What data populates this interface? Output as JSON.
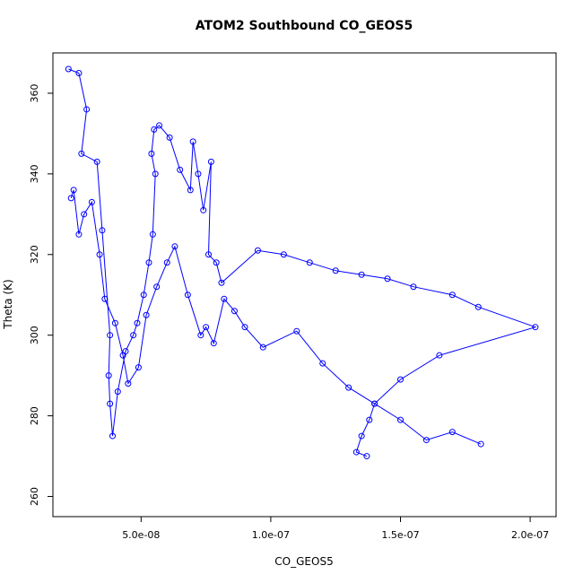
{
  "chart_data": {
    "type": "scatter",
    "title": "ATOM2 Southbound CO_GEOS5",
    "xlabel": "CO_GEOS5",
    "ylabel": "Theta (K)",
    "xlim": [
      1.6e-08,
      2.1e-07
    ],
    "ylim": [
      255,
      370
    ],
    "x_ticks": [
      5e-08,
      1e-07,
      1.5e-07,
      2e-07
    ],
    "x_tick_labels": [
      "5.0e-08",
      "1.0e-07",
      "1.5e-07",
      "2.0e-07"
    ],
    "y_ticks": [
      260,
      280,
      300,
      320,
      340,
      360
    ],
    "y_tick_labels": [
      "260",
      "280",
      "300",
      "320",
      "340",
      "360"
    ],
    "grid": false,
    "legend": "none",
    "series": [
      {
        "style": "line-with-open-circles",
        "color": "#0000ff",
        "x": [
          2.2e-08,
          2.6e-08,
          2.9e-08,
          2.7e-08,
          3.3e-08,
          3.5e-08,
          3.8e-08,
          3.75e-08,
          3.8e-08,
          3.9e-08,
          4.1e-08,
          4.4e-08,
          4.7e-08,
          4.85e-08,
          5.1e-08,
          5.3e-08,
          5.45e-08,
          5.55e-08,
          5.4e-08,
          5.5e-08,
          5.7e-08,
          6.1e-08,
          6.5e-08,
          6.9e-08,
          7e-08,
          7.2e-08,
          7.4e-08,
          7.7e-08,
          7.6e-08,
          7.9e-08,
          8.1e-08,
          9.5e-08,
          1.05e-07,
          1.15e-07,
          1.25e-07,
          1.35e-07,
          1.45e-07,
          1.55e-07,
          1.7e-07,
          1.8e-07,
          2.02e-07,
          1.65e-07,
          1.5e-07,
          1.4e-07,
          1.38e-07,
          1.35e-07,
          1.33e-07,
          1.37e-07
        ],
        "y": [
          366,
          365,
          356,
          345,
          343,
          326,
          300,
          290,
          283,
          275,
          286,
          296,
          300,
          303,
          310,
          318,
          325,
          340,
          345,
          351,
          352,
          349,
          341,
          336,
          348,
          340,
          331,
          343,
          320,
          318,
          313,
          321,
          320,
          318,
          316,
          315,
          314,
          312,
          310,
          307,
          302,
          295,
          289,
          283,
          279,
          275,
          271,
          270
        ]
      },
      {
        "style": "line-with-open-circles",
        "color": "#0000ff",
        "x": [
          2.3e-08,
          2.4e-08,
          2.6e-08,
          2.8e-08,
          3.1e-08,
          3.4e-08,
          3.6e-08,
          4e-08,
          4.3e-08,
          4.5e-08,
          4.9e-08,
          5.2e-08,
          5.6e-08,
          6e-08,
          6.3e-08,
          6.8e-08,
          7.3e-08,
          7.5e-08,
          7.8e-08,
          8.2e-08,
          8.6e-08,
          9e-08,
          9.7e-08,
          1.1e-07,
          1.2e-07,
          1.3e-07,
          1.4e-07,
          1.5e-07,
          1.6e-07,
          1.7e-07,
          1.81e-07
        ],
        "y": [
          334,
          336,
          325,
          330,
          333,
          320,
          309,
          303,
          295,
          288,
          292,
          305,
          312,
          318,
          322,
          310,
          300,
          302,
          298,
          309,
          306,
          302,
          297,
          301,
          293,
          287,
          283,
          279,
          274,
          276,
          273
        ]
      }
    ]
  }
}
